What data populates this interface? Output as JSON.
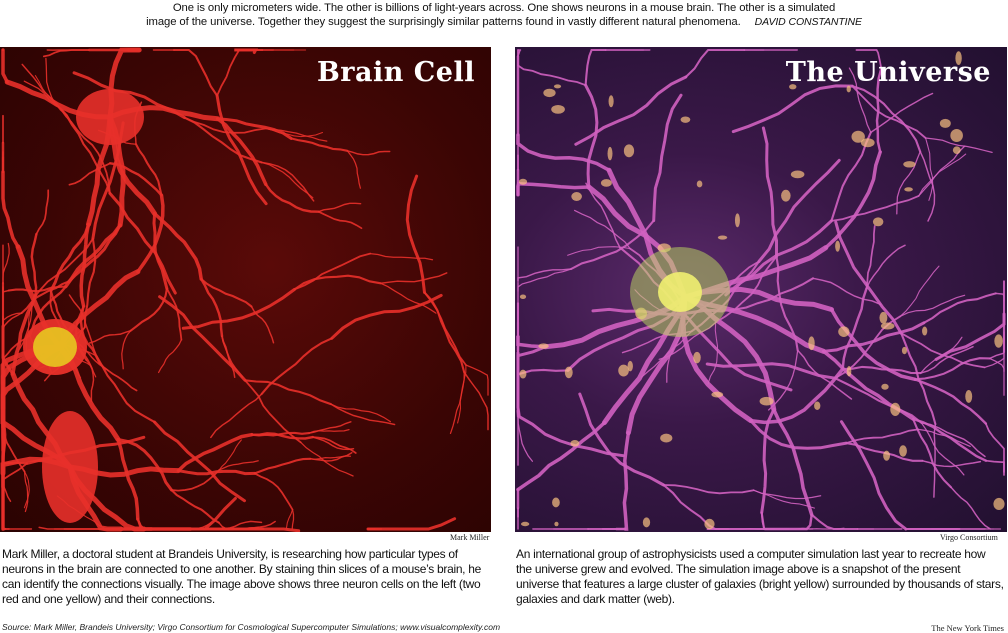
{
  "intro": {
    "line1": "One is only micrometers wide. The other is billions of light-years across. One shows neurons in a mouse brain. The other is a simulated",
    "line2": "image of the universe. Together they suggest the surprisingly similar patterns found in vastly different natural phenomena.",
    "byline": "DAVID CONSTANTINE"
  },
  "panels": [
    {
      "title": "Brain Cell",
      "credit": "Mark Miller",
      "caption": "Mark Miller, a doctoral student at Brandeis University, is researching how particular types of neurons in the brain are connected to one another. By staining thin slices of a mouse’s brain, he can identify the connections visually. The image above shows three neuron cells on the left (two red and one yellow) and their connections."
    },
    {
      "title": "The Universe",
      "credit": "Virgo Consortium",
      "caption": "An international group of astrophysicists used a computer simulation last year to recreate how the universe grew and evolved. The simulation image above is a snapshot of the present universe that features a large cluster of galaxies (bright yellow) surrounded by thousands of stars, galaxies and dark matter (web)."
    }
  ],
  "footer": {
    "source": "Source: Mark Miller, Brandeis University; Virgo Consortium for Cosmological Supercomputer Simulations; www.visualcomplexity.com",
    "publisher": "The New York Times"
  },
  "colors": {
    "neuron": "#e8302a",
    "neuron_yellow": "#e8d020",
    "web": "#d060c0",
    "cluster": "#f0f070"
  }
}
